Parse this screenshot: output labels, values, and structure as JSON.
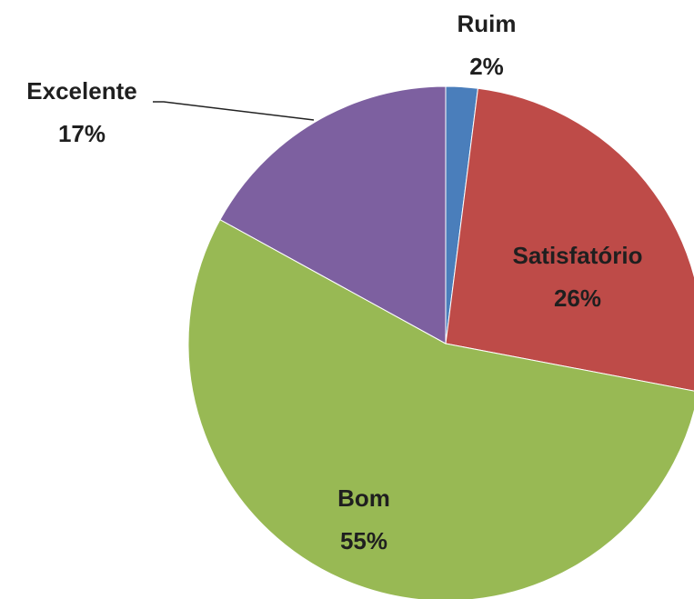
{
  "chart_data": {
    "type": "pie",
    "categories": [
      "Ruim",
      "Satisfatório",
      "Bom",
      "Excelente"
    ],
    "values": [
      2,
      26,
      55,
      17
    ],
    "value_labels": [
      "2%",
      "26%",
      "55%",
      "17%"
    ],
    "colors": [
      "#4a7ebb",
      "#be4b48",
      "#98b954",
      "#7d60a0"
    ]
  }
}
